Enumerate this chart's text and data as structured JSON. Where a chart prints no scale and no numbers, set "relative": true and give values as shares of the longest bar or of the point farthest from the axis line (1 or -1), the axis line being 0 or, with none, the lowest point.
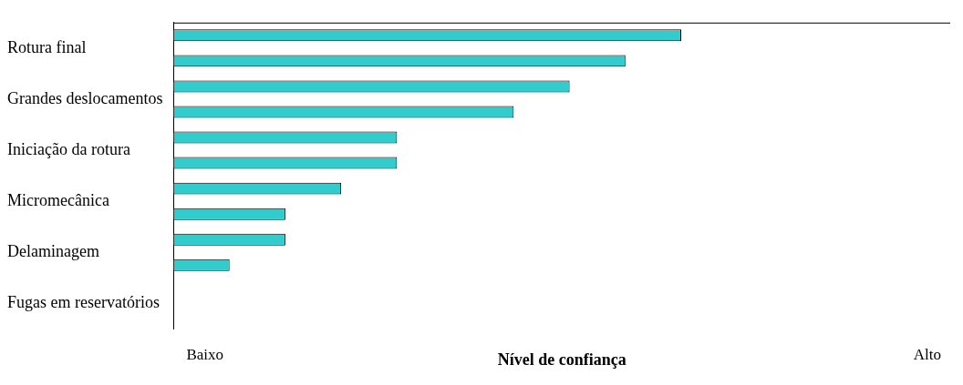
{
  "chart_data": {
    "type": "bar",
    "orientation": "horizontal",
    "relative": true,
    "categories": [
      "Rotura final",
      "Grandes deslocamentos",
      "Iniciação da rotura",
      "Micromecânica",
      "Delaminagem",
      "Fugas em reservatórios"
    ],
    "series": [
      {
        "color": "#33cccc",
        "values": [
          1,
          0.78,
          0.44,
          0.33,
          0.22,
          null
        ]
      },
      {
        "color": "#33cccc",
        "values": [
          0.89,
          0.67,
          0.44,
          0.22,
          0.11,
          null
        ]
      }
    ],
    "xlabel": "Nível de confiança",
    "annotations": [
      "Baixo",
      "Alto"
    ],
    "grid": false,
    "legend": false
  }
}
